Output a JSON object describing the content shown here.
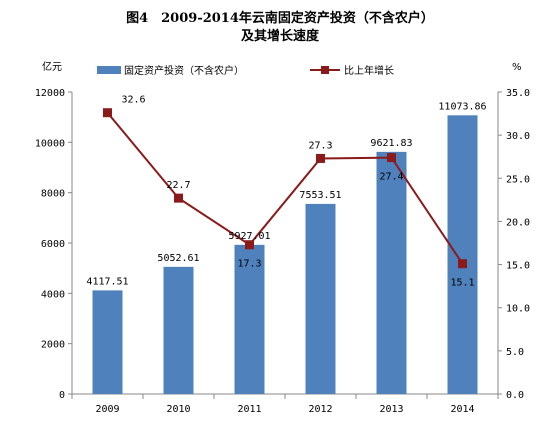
{
  "chart_data": {
    "type": "bar",
    "title": "图4　2009-2014年云南固定资产投资（不含农户）",
    "subtitle": "及其增长速度",
    "categories": [
      "2009",
      "2010",
      "2011",
      "2012",
      "2013",
      "2014"
    ],
    "left_unit": "亿元",
    "right_unit": "%",
    "ylim": [
      0,
      12000
    ],
    "y2lim": [
      0,
      35
    ],
    "left_ticks": [
      "0",
      "2000",
      "4000",
      "6000",
      "8000",
      "10000",
      "12000"
    ],
    "right_ticks": [
      "0.0",
      "5.0",
      "10.0",
      "15.0",
      "20.0",
      "25.0",
      "30.0",
      "35.0"
    ],
    "legend_position": "top",
    "grid": false,
    "series": [
      {
        "name": "固定资产投资（不含农户）",
        "type": "bar",
        "axis": "left",
        "color": "#4F81BD",
        "values": [
          4117.51,
          5052.61,
          5927.01,
          7553.51,
          9621.83,
          11073.86
        ],
        "labels": [
          "4117.51",
          "5052.61",
          "5927.01",
          "7553.51",
          "9621.83",
          "11073.86"
        ]
      },
      {
        "name": "比上年增长",
        "type": "line",
        "axis": "right",
        "color": "#8B1A1A",
        "values": [
          32.6,
          22.7,
          17.3,
          27.3,
          27.4,
          15.1
        ],
        "labels": [
          "32.6",
          "22.7",
          "17.3",
          "27.3",
          "27.4",
          "15.1"
        ]
      }
    ]
  }
}
